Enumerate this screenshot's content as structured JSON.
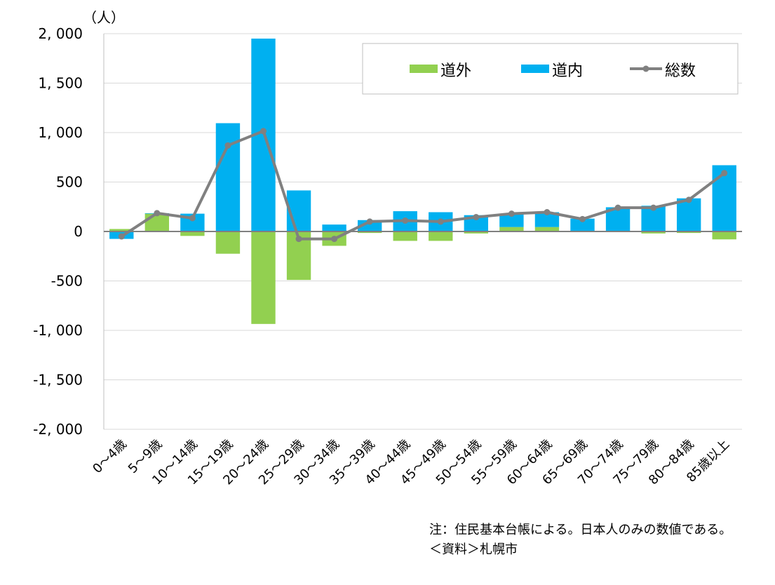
{
  "chart_data": {
    "type": "bar",
    "stacked": true,
    "unit_label": "（人）",
    "categories": [
      "0～4歳",
      "5～9歳",
      "10～14歳",
      "15～19歳",
      "20～24歳",
      "25～29歳",
      "30～34歳",
      "35～39歳",
      "40～44歳",
      "45～49歳",
      "50～54歳",
      "55～59歳",
      "60～64歳",
      "65～69歳",
      "70～74歳",
      "75～79歳",
      "80～84歳",
      "85歳以上"
    ],
    "series": [
      {
        "name": "道外",
        "kind": "bar",
        "color": "#92d050",
        "values": [
          25,
          180,
          -45,
          -225,
          -935,
          -490,
          -145,
          -15,
          -95,
          -95,
          -20,
          45,
          45,
          -5,
          -5,
          -20,
          -15,
          -80
        ]
      },
      {
        "name": "道内",
        "kind": "bar",
        "color": "#00b0f0",
        "values": [
          -75,
          5,
          180,
          1095,
          1950,
          415,
          70,
          115,
          205,
          195,
          165,
          135,
          150,
          130,
          245,
          260,
          335,
          670
        ]
      },
      {
        "name": "総数",
        "kind": "line",
        "color": "#808080",
        "values": [
          -50,
          185,
          135,
          870,
          1015,
          -75,
          -75,
          100,
          110,
          100,
          145,
          180,
          195,
          125,
          240,
          240,
          320,
          590
        ]
      }
    ],
    "ylim": [
      -2000,
      2000
    ],
    "yticks": [
      {
        "v": 2000,
        "label": "2, 000"
      },
      {
        "v": 1500,
        "label": "1, 500"
      },
      {
        "v": 1000,
        "label": "1, 000"
      },
      {
        "v": 500,
        "label": "500"
      },
      {
        "v": 0,
        "label": "0"
      },
      {
        "v": -500,
        "label": "-500"
      },
      {
        "v": -1000,
        "label": "-1, 000"
      },
      {
        "v": -1500,
        "label": "-1, 500"
      },
      {
        "v": -2000,
        "label": "-2, 000"
      }
    ],
    "grid": true,
    "legend_position": "top-right"
  },
  "notes": {
    "line1": "注：住民基本台帳による。日本人のみの数値である。",
    "line2": "＜資料＞札幌市"
  }
}
